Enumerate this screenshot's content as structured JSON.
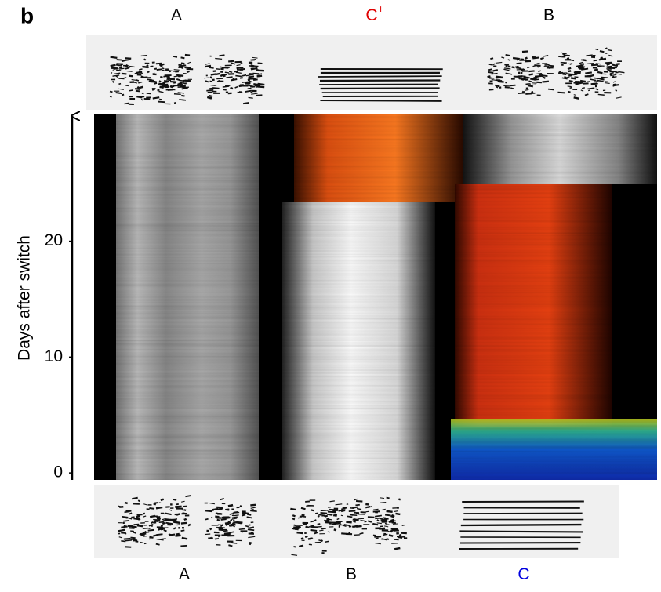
{
  "panel_label": "b",
  "top_labels": [
    {
      "text": "A",
      "color": "#000000"
    },
    {
      "text": "C",
      "superscript": "+",
      "color": "#e00000"
    },
    {
      "text": "B",
      "color": "#000000"
    }
  ],
  "bottom_labels": [
    {
      "text": "A",
      "color": "#000000"
    },
    {
      "text": "B",
      "color": "#000000"
    },
    {
      "text": "C",
      "color": "#0000e0"
    }
  ],
  "y_axis": {
    "label": "Days after switch",
    "lim": [
      -0.6,
      31
    ],
    "ticks": [
      0,
      10,
      20
    ]
  }
}
